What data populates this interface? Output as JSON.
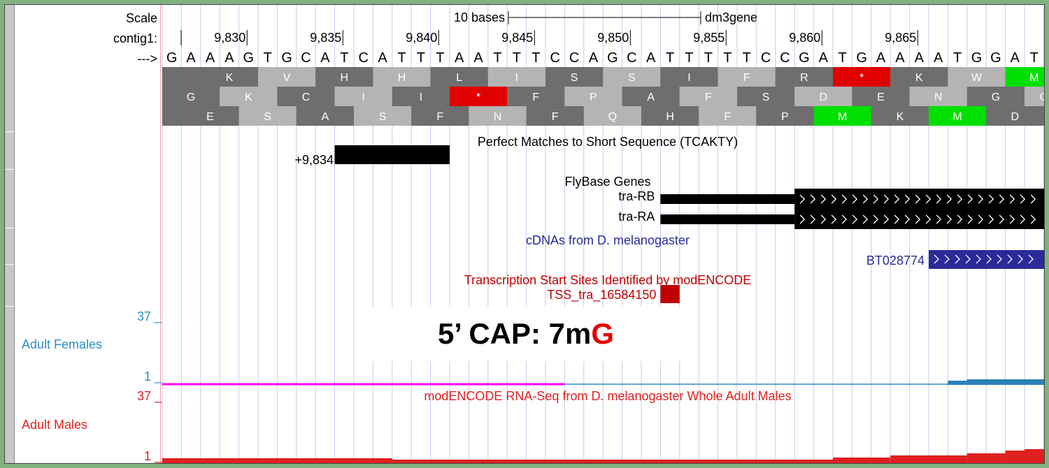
{
  "ruler": {
    "scale_label": "Scale",
    "contig_label": "contig1:",
    "arrow_label": "--->",
    "scale_text": "10 bases",
    "assembly": "dm3gene",
    "positions": [
      {
        "label": "9,830",
        "base": 4
      },
      {
        "label": "9,835",
        "base": 9
      },
      {
        "label": "9,840",
        "base": 14
      },
      {
        "label": "9,845",
        "base": 19
      },
      {
        "label": "9,850",
        "base": 24
      },
      {
        "label": "9,855",
        "base": 29
      },
      {
        "label": "9,860",
        "base": 34
      },
      {
        "label": "9,865",
        "base": 39
      }
    ]
  },
  "sequence": "GAAAGTGCATCATTTAATTTCCAGCATTTTTCCGATGAAAATGGATG",
  "frames": [
    {
      "offset": 2,
      "aa": [
        "K",
        "V",
        "H",
        "H",
        "L",
        "I",
        "S",
        "S",
        "I",
        "F",
        "R",
        "*",
        "K",
        "W",
        "M"
      ]
    },
    {
      "offset": 0,
      "aa": [
        "G",
        "K",
        "C",
        "I",
        "I",
        "*",
        "F",
        "P",
        "A",
        "F",
        "S",
        "D",
        "E",
        "N",
        "G",
        "C"
      ]
    },
    {
      "offset": 1,
      "aa": [
        "E",
        "S",
        "A",
        "S",
        "F",
        "N",
        "F",
        "Q",
        "H",
        "F",
        "P",
        "M",
        "K",
        "M",
        "D"
      ]
    }
  ],
  "colors": {
    "stop": "#e00000",
    "start": "#00e000",
    "dark": "#6e6e6e",
    "light": "#b4b4b4",
    "blue_track": "#2a2a9a",
    "tss": "#c00000",
    "females": "#2b7fb8",
    "males": "#e02020"
  },
  "short_seq": {
    "title": "Perfect Matches to Short Sequence (TCAKTY)",
    "item": "+9,834"
  },
  "flybase": {
    "title": "FlyBase Genes",
    "genes": [
      "tra-RB",
      "tra-RA"
    ]
  },
  "cdnas": {
    "title": "cDNAs from D. melanogaster",
    "item": "BT028774"
  },
  "tss": {
    "title": "Transcription Start Sites Identified by modENCODE",
    "item": "TSS_tra_16584150"
  },
  "overlay": {
    "prefix": "5’ CAP: 7m",
    "highlight": "G"
  },
  "females": {
    "label": "Adult Females",
    "max": "37 _",
    "min": "1 _"
  },
  "males": {
    "label": "Adult Males",
    "max": "37 _",
    "min": "1 _",
    "title": "modENCODE RNA-Seq from D. melanogaster Whole Adult Males"
  }
}
